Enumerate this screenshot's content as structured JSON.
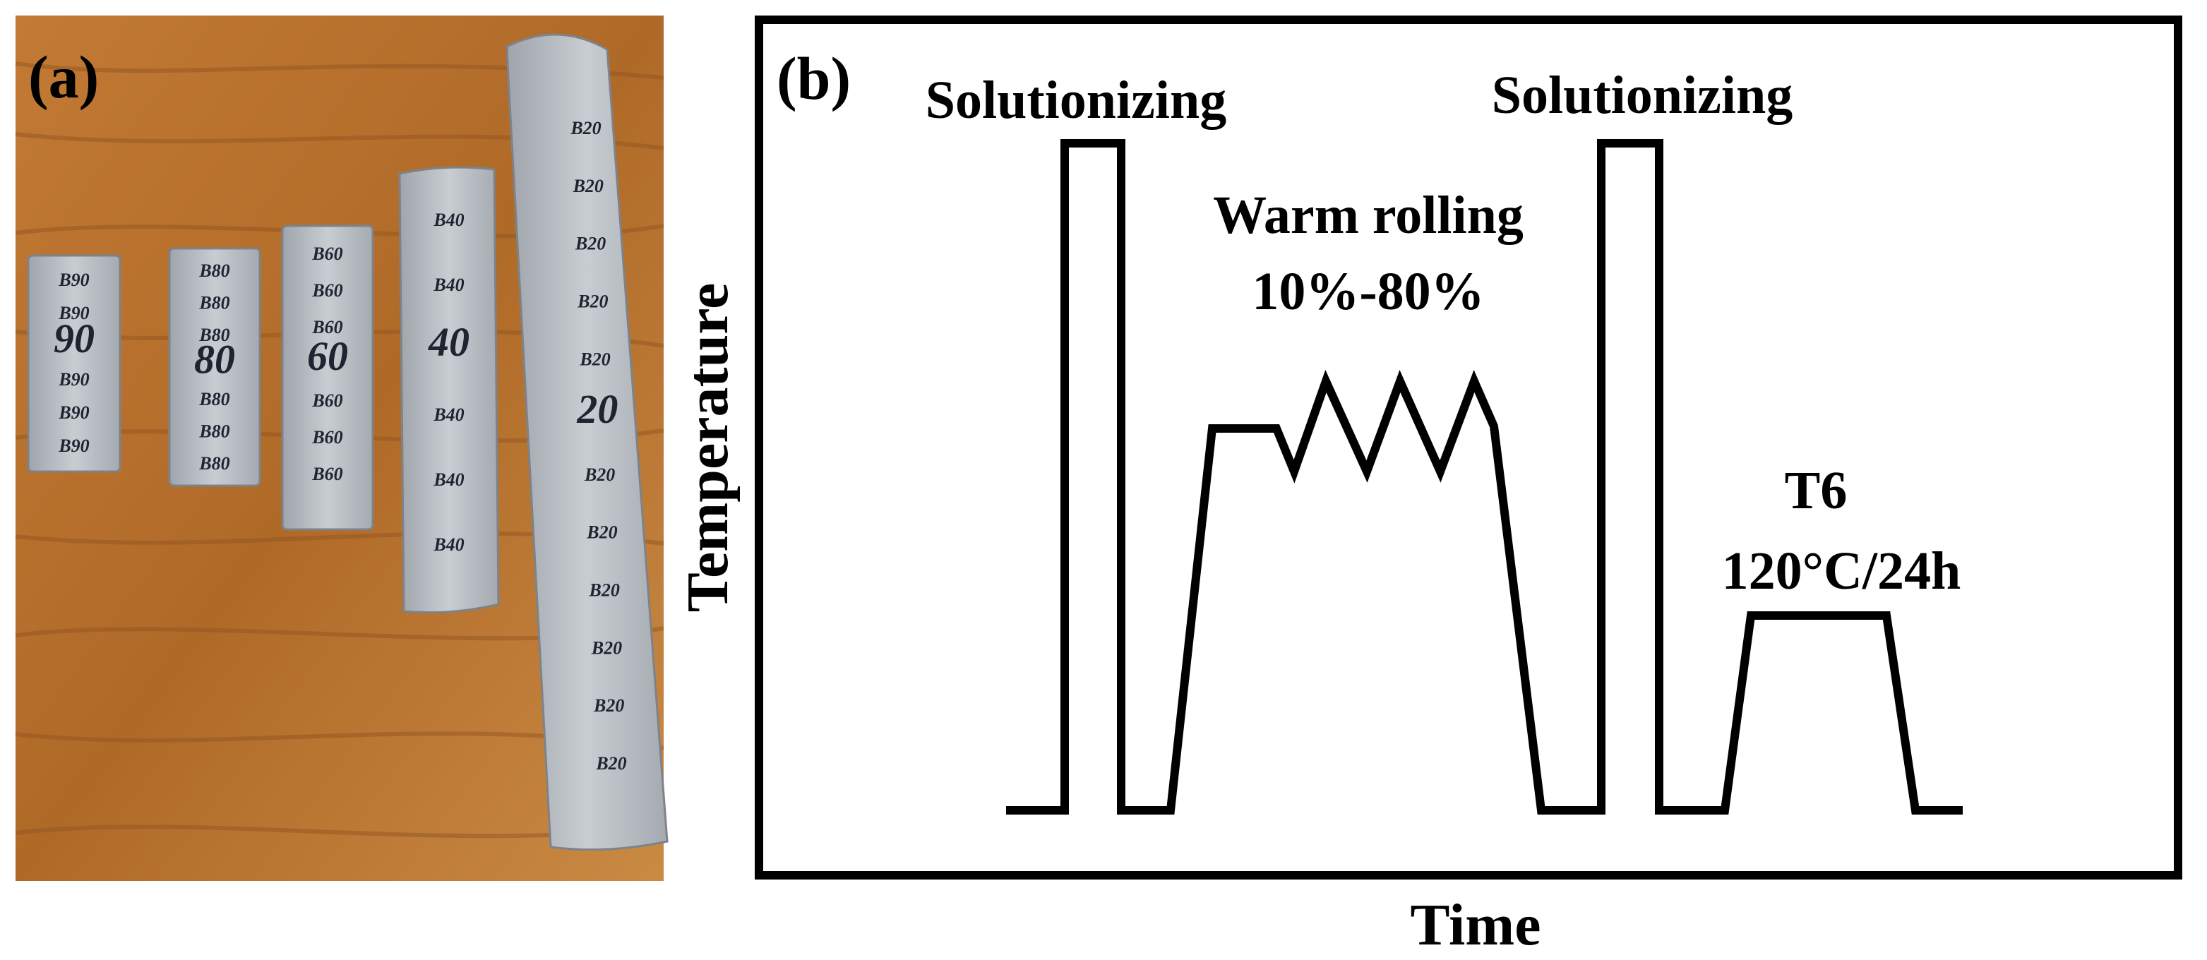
{
  "panel_a": {
    "label": "(a)",
    "strips": [
      {
        "id": "B90",
        "marks": [
          "B90",
          "B90",
          "90",
          "B90",
          "B90",
          "B90"
        ]
      },
      {
        "id": "B80",
        "marks": [
          "B80",
          "B80",
          "B80",
          "80",
          "B80",
          "B80",
          "B80"
        ]
      },
      {
        "id": "B60",
        "marks": [
          "B60",
          "B60",
          "B60",
          "60",
          "B60",
          "B60",
          "B60"
        ]
      },
      {
        "id": "B40",
        "marks": [
          "B40",
          "B40",
          "40",
          "B40",
          "B40",
          "B40"
        ]
      },
      {
        "id": "B20",
        "marks": [
          "B20",
          "B20",
          "B20",
          "B20",
          "B20",
          "20",
          "B20",
          "B20",
          "B20",
          "B20",
          "B20",
          "B20"
        ]
      }
    ],
    "colors": {
      "wood": "#b5702e",
      "wood_dark": "#8f5220",
      "metal": "#b9bec3",
      "marker": "#1e2430"
    }
  },
  "panel_b": {
    "label": "(b)",
    "x_label": "Time",
    "y_label": "Temperature",
    "annotations": {
      "solution_1": "Solutionizing",
      "rolling_line1": "Warm rolling",
      "rolling_line2": "10%-80%",
      "solution_2": "Solutionizing",
      "t6_line1": "T6",
      "t6_line2": "120°C/24h"
    },
    "colors": {
      "line": "#000000",
      "frame": "#000000",
      "background": "#ffffff"
    }
  }
}
